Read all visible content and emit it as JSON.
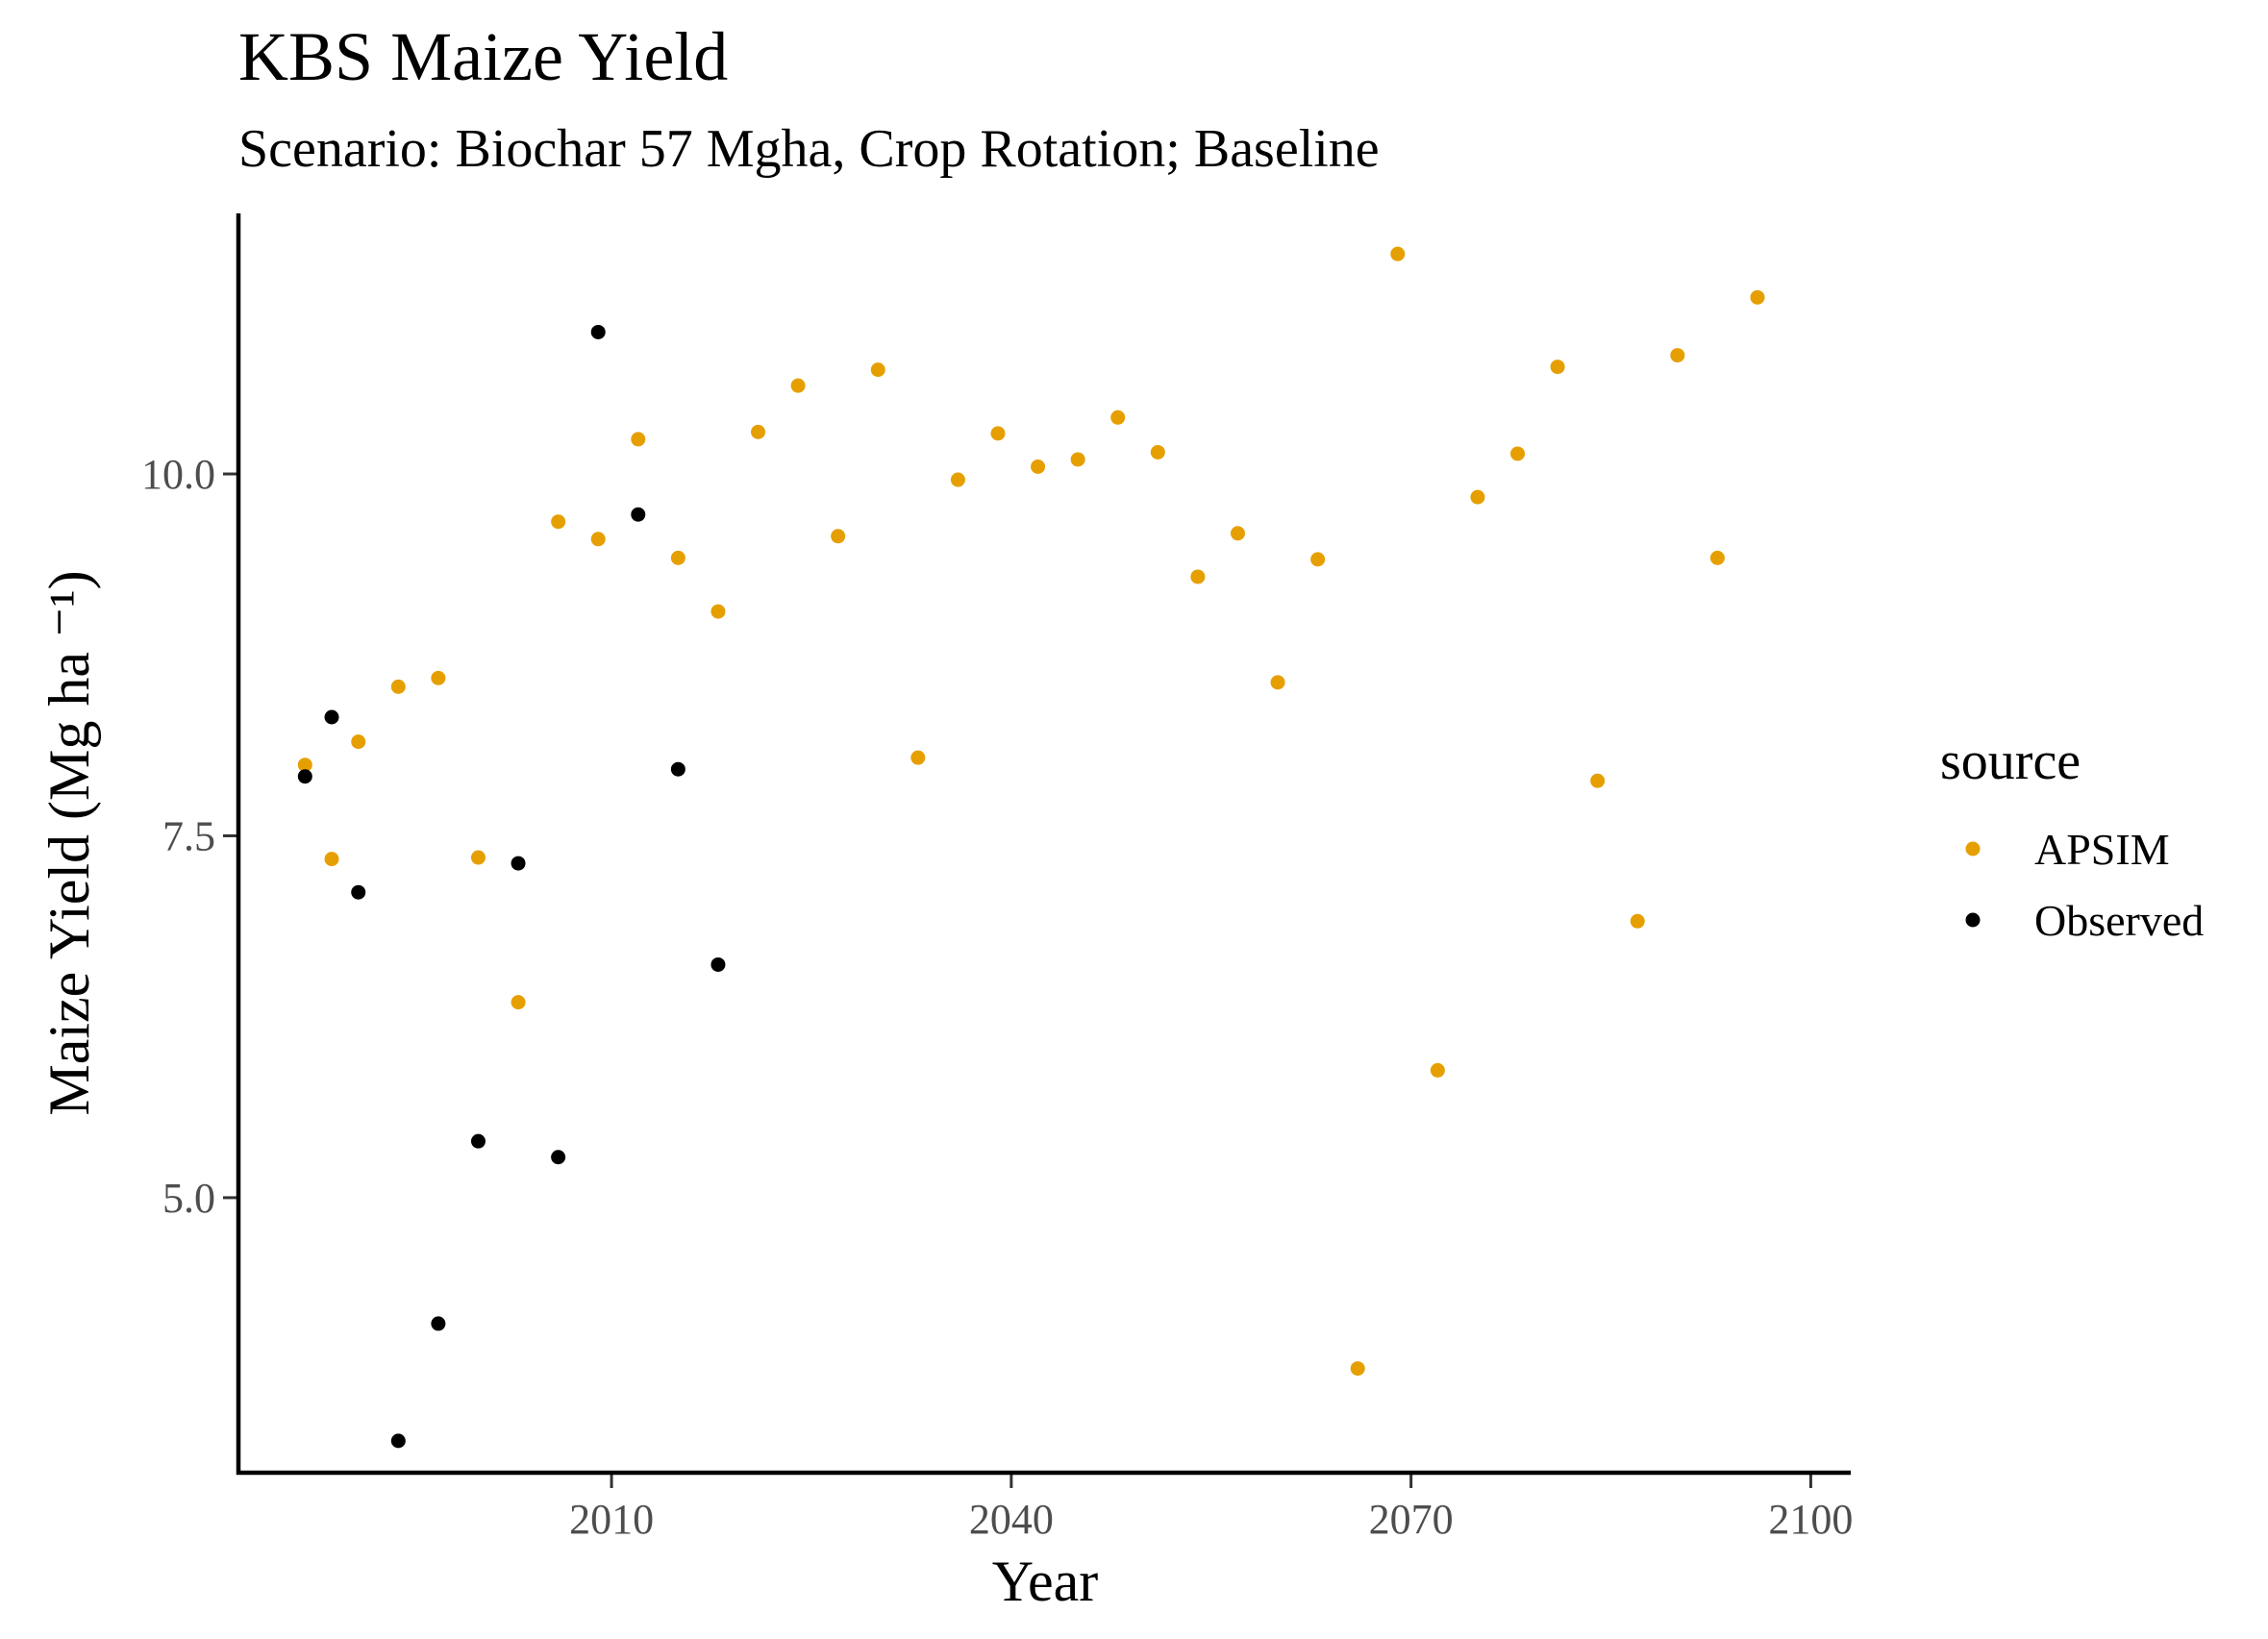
{
  "chart_data": {
    "type": "scatter",
    "title": "KBS Maize Yield",
    "subtitle": "Scenario: Biochar 57 Mgha, Crop Rotation; Baseline",
    "xlabel": "Year",
    "ylabel": "Maize Yield (Mg ha ⁻¹)",
    "xlim": [
      1982,
      2103
    ],
    "ylim": [
      3.1,
      11.8
    ],
    "xticks": [
      2010,
      2040,
      2070,
      2100
    ],
    "yticks": [
      5.0,
      7.5,
      10.0
    ],
    "xtick_labels": [
      "2010",
      "2040",
      "2070",
      "2100"
    ],
    "ytick_labels": [
      "5.0",
      "7.5",
      "10.0"
    ],
    "grid": false,
    "legend": {
      "title": "source",
      "placement": "right"
    },
    "series": [
      {
        "name": "APSIM",
        "color": "#E69F00",
        "points": [
          [
            1987,
            7.99
          ],
          [
            1989,
            7.34
          ],
          [
            1991,
            8.15
          ],
          [
            1994,
            8.53
          ],
          [
            1997,
            8.59
          ],
          [
            2000,
            7.35
          ],
          [
            2003,
            6.35
          ],
          [
            2006,
            9.67
          ],
          [
            2009,
            9.55
          ],
          [
            2012,
            10.24
          ],
          [
            2015,
            9.42
          ],
          [
            2018,
            9.05
          ],
          [
            2021,
            10.29
          ],
          [
            2024,
            10.61
          ],
          [
            2027,
            9.57
          ],
          [
            2030,
            10.72
          ],
          [
            2033,
            8.04
          ],
          [
            2036,
            9.96
          ],
          [
            2039,
            10.28
          ],
          [
            2042,
            10.05
          ],
          [
            2045,
            10.1
          ],
          [
            2048,
            10.39
          ],
          [
            2051,
            10.15
          ],
          [
            2054,
            9.29
          ],
          [
            2057,
            9.59
          ],
          [
            2060,
            8.56
          ],
          [
            2063,
            9.41
          ],
          [
            2066,
            3.82
          ],
          [
            2069,
            11.52
          ],
          [
            2072,
            5.88
          ],
          [
            2075,
            9.84
          ],
          [
            2078,
            10.14
          ],
          [
            2081,
            10.74
          ],
          [
            2084,
            7.88
          ],
          [
            2087,
            6.91
          ],
          [
            2090,
            10.82
          ],
          [
            2093,
            9.42
          ],
          [
            2096,
            11.22
          ]
        ]
      },
      {
        "name": "Observed",
        "color": "#000000",
        "points": [
          [
            1987,
            7.91
          ],
          [
            1989,
            8.32
          ],
          [
            1991,
            7.11
          ],
          [
            1994,
            3.32
          ],
          [
            1997,
            4.13
          ],
          [
            2000,
            5.39
          ],
          [
            2003,
            7.31
          ],
          [
            2006,
            5.28
          ],
          [
            2009,
            10.98
          ],
          [
            2012,
            9.72
          ],
          [
            2015,
            7.96
          ],
          [
            2018,
            6.61
          ]
        ]
      }
    ]
  }
}
